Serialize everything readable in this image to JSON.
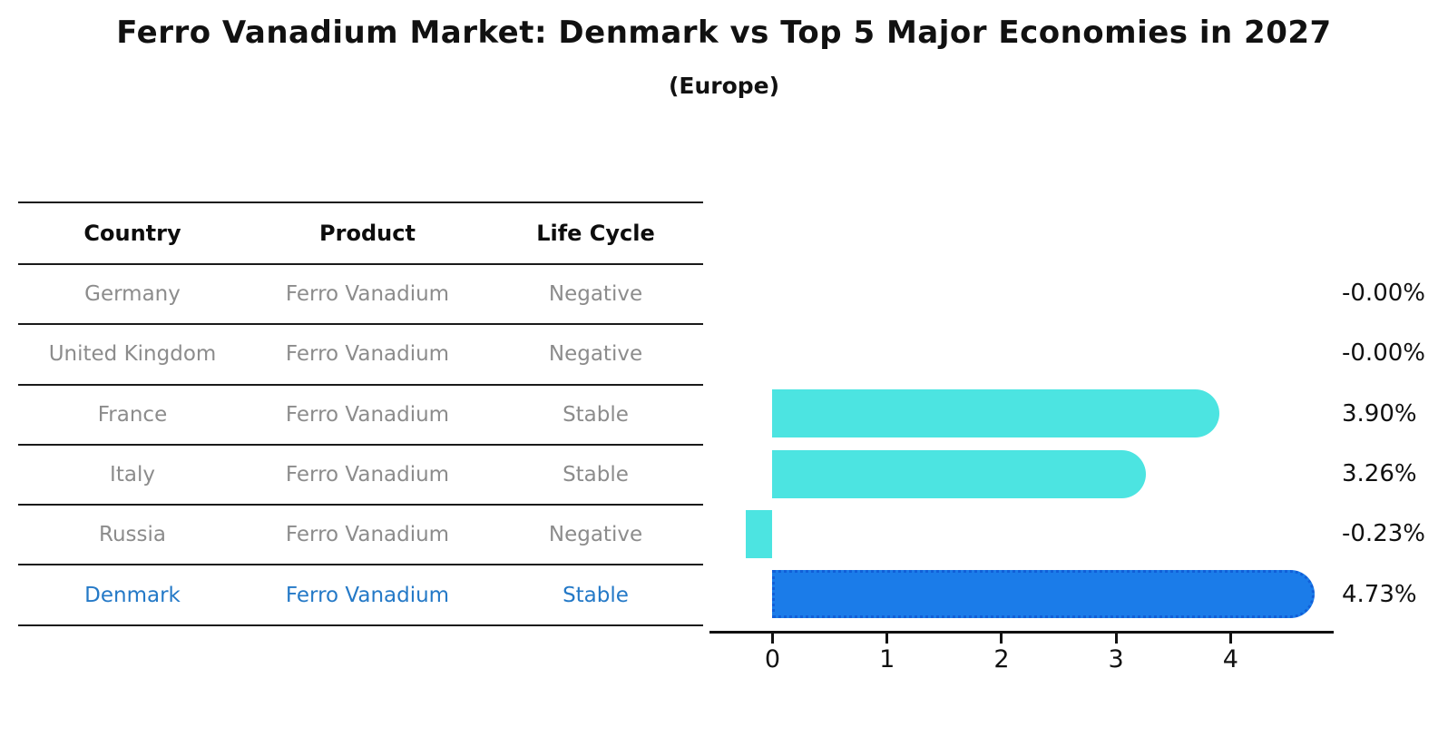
{
  "chart_data": {
    "type": "bar",
    "orientation": "horizontal",
    "title": "Ferro Vanadium Market: Denmark vs Top 5 Major Economies in 2027",
    "subtitle": "(Europe)",
    "categories": [
      "Germany",
      "United Kingdom",
      "France",
      "Italy",
      "Russia",
      "Denmark"
    ],
    "values": [
      -0.0,
      -0.0,
      3.9,
      3.26,
      -0.23,
      4.73
    ],
    "value_labels": [
      "-0.00%",
      "-0.00%",
      "3.90%",
      "3.26%",
      "-0.23%",
      "4.73%"
    ],
    "highlight_index": 5,
    "xticks": [
      0,
      1,
      2,
      3,
      4
    ],
    "xlim": [
      -0.55,
      4.9
    ],
    "grid": false,
    "legend": false,
    "value_label_position": "right-of-plot"
  },
  "table": {
    "headers": [
      "Country",
      "Product",
      "Life Cycle"
    ],
    "rows": [
      {
        "country": "Germany",
        "product": "Ferro Vanadium",
        "life_cycle": "Negative",
        "highlight": false
      },
      {
        "country": "United Kingdom",
        "product": "Ferro Vanadium",
        "life_cycle": "Negative",
        "highlight": false
      },
      {
        "country": "France",
        "product": "Ferro Vanadium",
        "life_cycle": "Stable",
        "highlight": false
      },
      {
        "country": "Italy",
        "product": "Ferro Vanadium",
        "life_cycle": "Stable",
        "highlight": false
      },
      {
        "country": "Russia",
        "product": "Ferro Vanadium",
        "life_cycle": "Negative",
        "highlight": false
      },
      {
        "country": "Denmark",
        "product": "Ferro Vanadium",
        "life_cycle": "Stable",
        "highlight": true
      }
    ]
  },
  "colors": {
    "bar": "#4ce4e1",
    "highlight_bar": "#1b7ce9",
    "highlight_bar_border": "#115fd8",
    "row_text": "#8c8c8c",
    "highlight_text": "#2479c7",
    "axis": "#111111",
    "title_text": "#111111"
  }
}
